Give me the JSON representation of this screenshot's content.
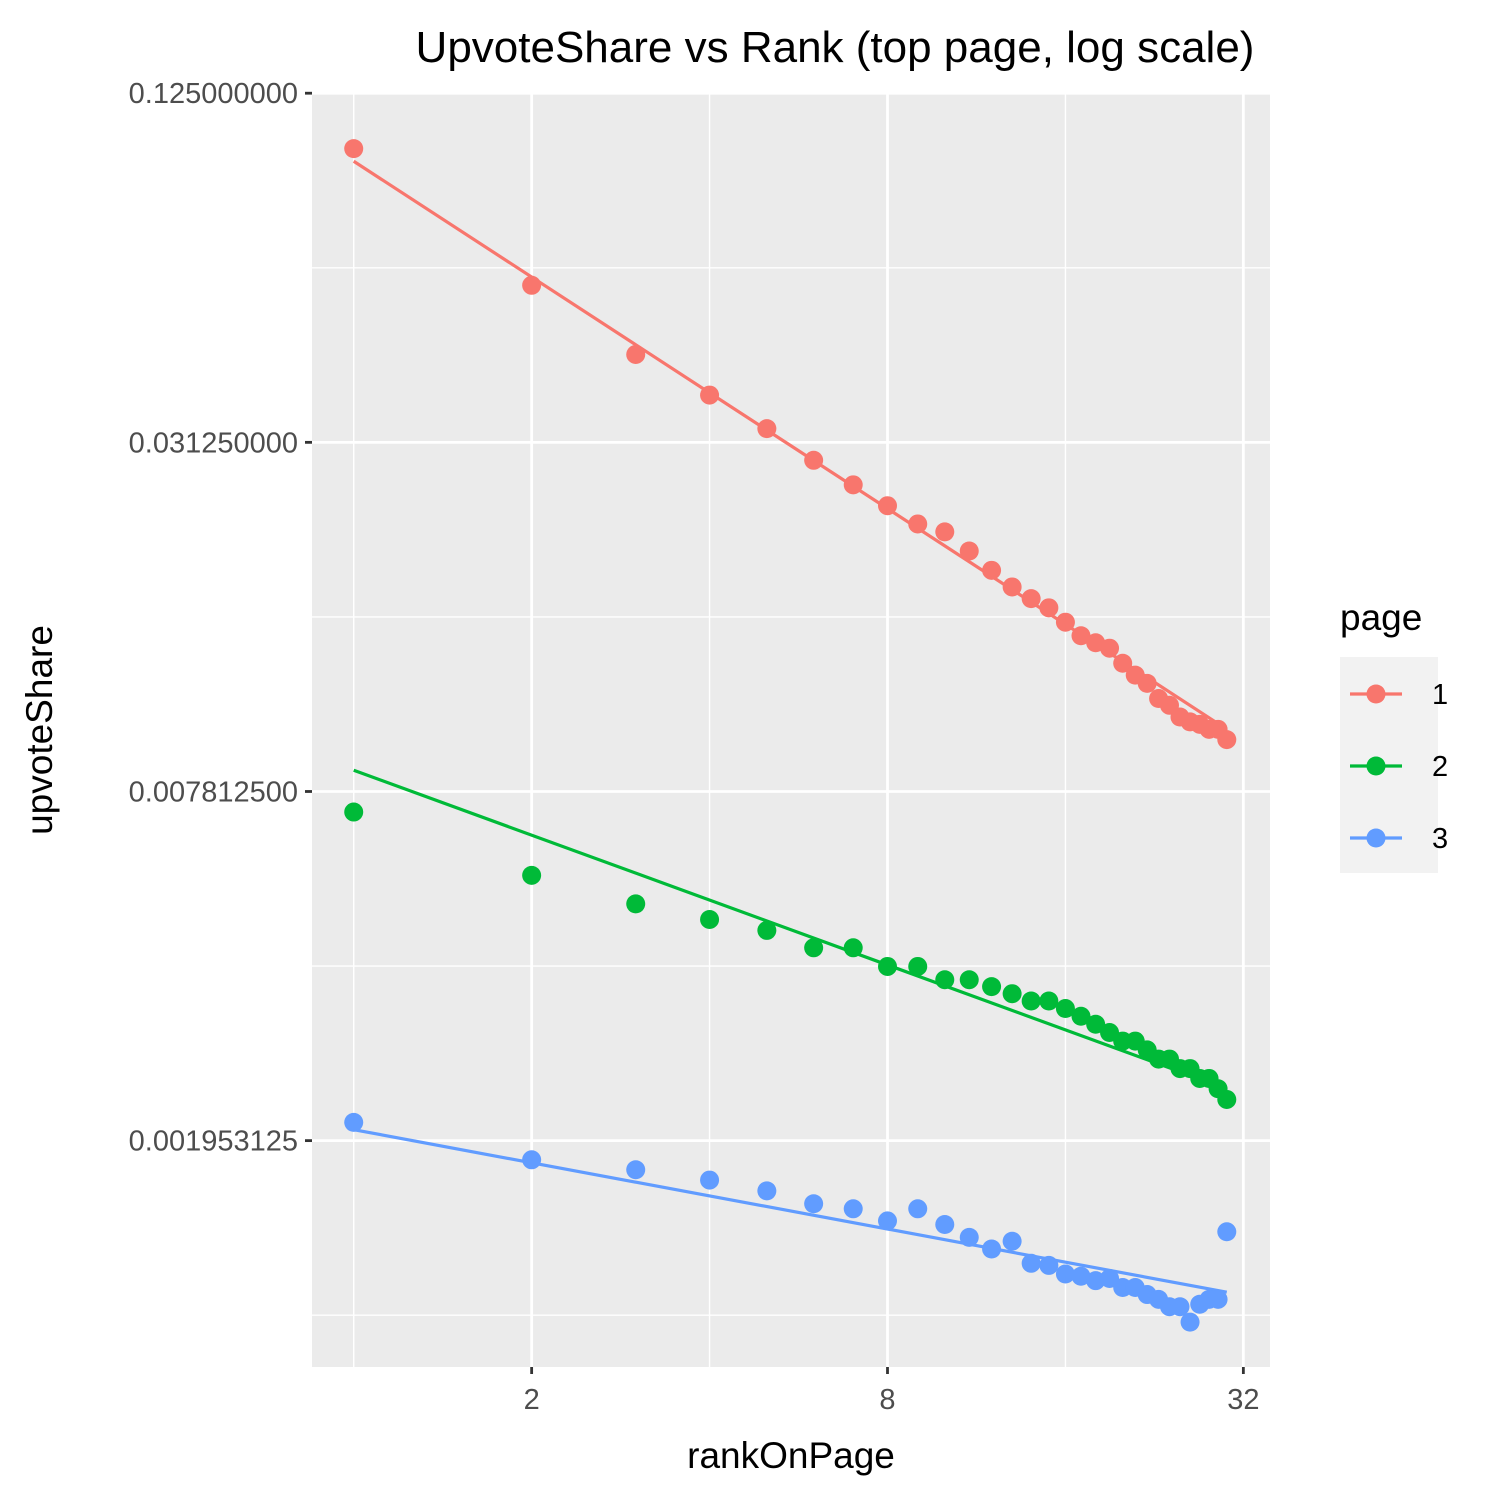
{
  "chart_data": {
    "type": "scatter",
    "title": "UpvoteShare vs Rank (top page, log scale)",
    "xlabel": "rankOnPage",
    "ylabel": "upvoteShare",
    "x_scale": "log2",
    "y_scale": "log2",
    "xlim": [
      0.85,
      35.5
    ],
    "ylim": [
      0.000795,
      0.1256
    ],
    "x_ticks": [
      2,
      8,
      32
    ],
    "x_tick_labels": [
      "2",
      "8",
      "32"
    ],
    "y_ticks": [
      0.125,
      0.03125,
      0.0078125,
      0.001953125
    ],
    "y_tick_labels": [
      "0.125000000",
      "0.031250000",
      "0.007812500",
      "0.001953125"
    ],
    "grid": true,
    "legend": {
      "title": "page",
      "position": "right"
    },
    "colors": {
      "1": "#F8766D",
      "2": "#00BA38",
      "3": "#619CFF"
    },
    "series": [
      {
        "name": "1",
        "color": "#F8766D",
        "x": [
          1,
          2,
          3,
          4,
          5,
          6,
          7,
          8,
          9,
          10,
          11,
          12,
          13,
          14,
          15,
          16,
          17,
          18,
          19,
          20,
          21,
          22,
          23,
          24,
          25,
          26,
          27,
          28,
          29,
          30
        ],
        "y": [
          0.1003,
          0.0583,
          0.0443,
          0.0377,
          0.033,
          0.0291,
          0.0264,
          0.0243,
          0.0226,
          0.0219,
          0.0203,
          0.0188,
          0.0176,
          0.0168,
          0.0162,
          0.0153,
          0.0145,
          0.0141,
          0.0138,
          0.013,
          0.0124,
          0.012,
          0.0113,
          0.011,
          0.0105,
          0.0103,
          0.0102,
          0.01,
          0.01,
          0.0096
        ],
        "fit_x": [
          1,
          30
        ],
        "fit_y": [
          0.0954,
          0.01
        ]
      },
      {
        "name": "2",
        "color": "#00BA38",
        "x": [
          1,
          2,
          3,
          4,
          5,
          6,
          7,
          8,
          9,
          10,
          11,
          12,
          13,
          14,
          15,
          16,
          17,
          18,
          19,
          20,
          21,
          22,
          23,
          24,
          25,
          26,
          27,
          28,
          29,
          30
        ],
        "y": [
          0.0072,
          0.0056,
          0.005,
          0.0047,
          0.0045,
          0.0042,
          0.0042,
          0.0039,
          0.0039,
          0.0037,
          0.0037,
          0.0036,
          0.0035,
          0.0034,
          0.0034,
          0.0033,
          0.0032,
          0.0031,
          0.003,
          0.0029,
          0.0029,
          0.0028,
          0.0027,
          0.0027,
          0.0026,
          0.0026,
          0.0025,
          0.0025,
          0.0024,
          0.0023
        ],
        "fit_x": [
          1,
          30
        ],
        "fit_y": [
          0.0085,
          0.0024
        ]
      },
      {
        "name": "3",
        "color": "#619CFF",
        "x": [
          1,
          2,
          3,
          4,
          5,
          6,
          7,
          8,
          9,
          10,
          11,
          12,
          13,
          14,
          15,
          16,
          17,
          18,
          19,
          20,
          21,
          22,
          23,
          24,
          25,
          26,
          27,
          28,
          29,
          30
        ],
        "y": [
          0.0021,
          0.00181,
          0.00174,
          0.00167,
          0.0016,
          0.00152,
          0.00149,
          0.00142,
          0.00149,
          0.0014,
          0.00133,
          0.00127,
          0.00131,
          0.0012,
          0.00119,
          0.00115,
          0.00114,
          0.00112,
          0.00113,
          0.00109,
          0.00109,
          0.00106,
          0.00104,
          0.00101,
          0.00101,
          0.00095,
          0.00102,
          0.00104,
          0.00104,
          0.00136
        ],
        "fit_x": [
          1,
          30
        ],
        "fit_y": [
          0.00204,
          0.00107
        ]
      }
    ]
  }
}
